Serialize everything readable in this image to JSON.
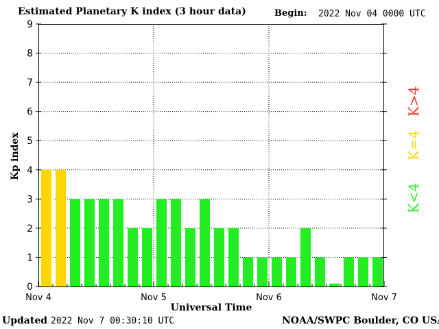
{
  "header": {
    "title": "Estimated Planetary K index (3 hour data)",
    "begin_label": "Begin:",
    "begin_date": "2022 Nov 04 0000 UTC"
  },
  "footer": {
    "updated_label": "Updated",
    "updated_date": "2022 Nov  7 00:30:10 UTC",
    "source": "NOAA/SWPC Boulder, CO USA"
  },
  "legend": {
    "high": "K>4",
    "equal": "K=4",
    "low": "K<4"
  },
  "colors": {
    "low": "#22ee22",
    "equal": "#ffd700",
    "high": "#ee3322"
  },
  "chart_data": {
    "type": "bar",
    "title": "Estimated Planetary K index (3 hour data)",
    "xlabel": "Universal Time",
    "ylabel": "Kp index",
    "ylim": [
      0,
      9
    ],
    "y_ticks": [
      "0",
      "1",
      "2",
      "3",
      "4",
      "5",
      "6",
      "7",
      "8",
      "9"
    ],
    "x_ticks": [
      "Nov 4",
      "Nov 5",
      "Nov 6",
      "Nov 7"
    ],
    "interval_hours": 3,
    "grid": true,
    "values": [
      4,
      4,
      3,
      3,
      3,
      3,
      2,
      2,
      3,
      3,
      2,
      3,
      2,
      2,
      1,
      1,
      1,
      1,
      2,
      1,
      0.1,
      1,
      1,
      1
    ]
  }
}
